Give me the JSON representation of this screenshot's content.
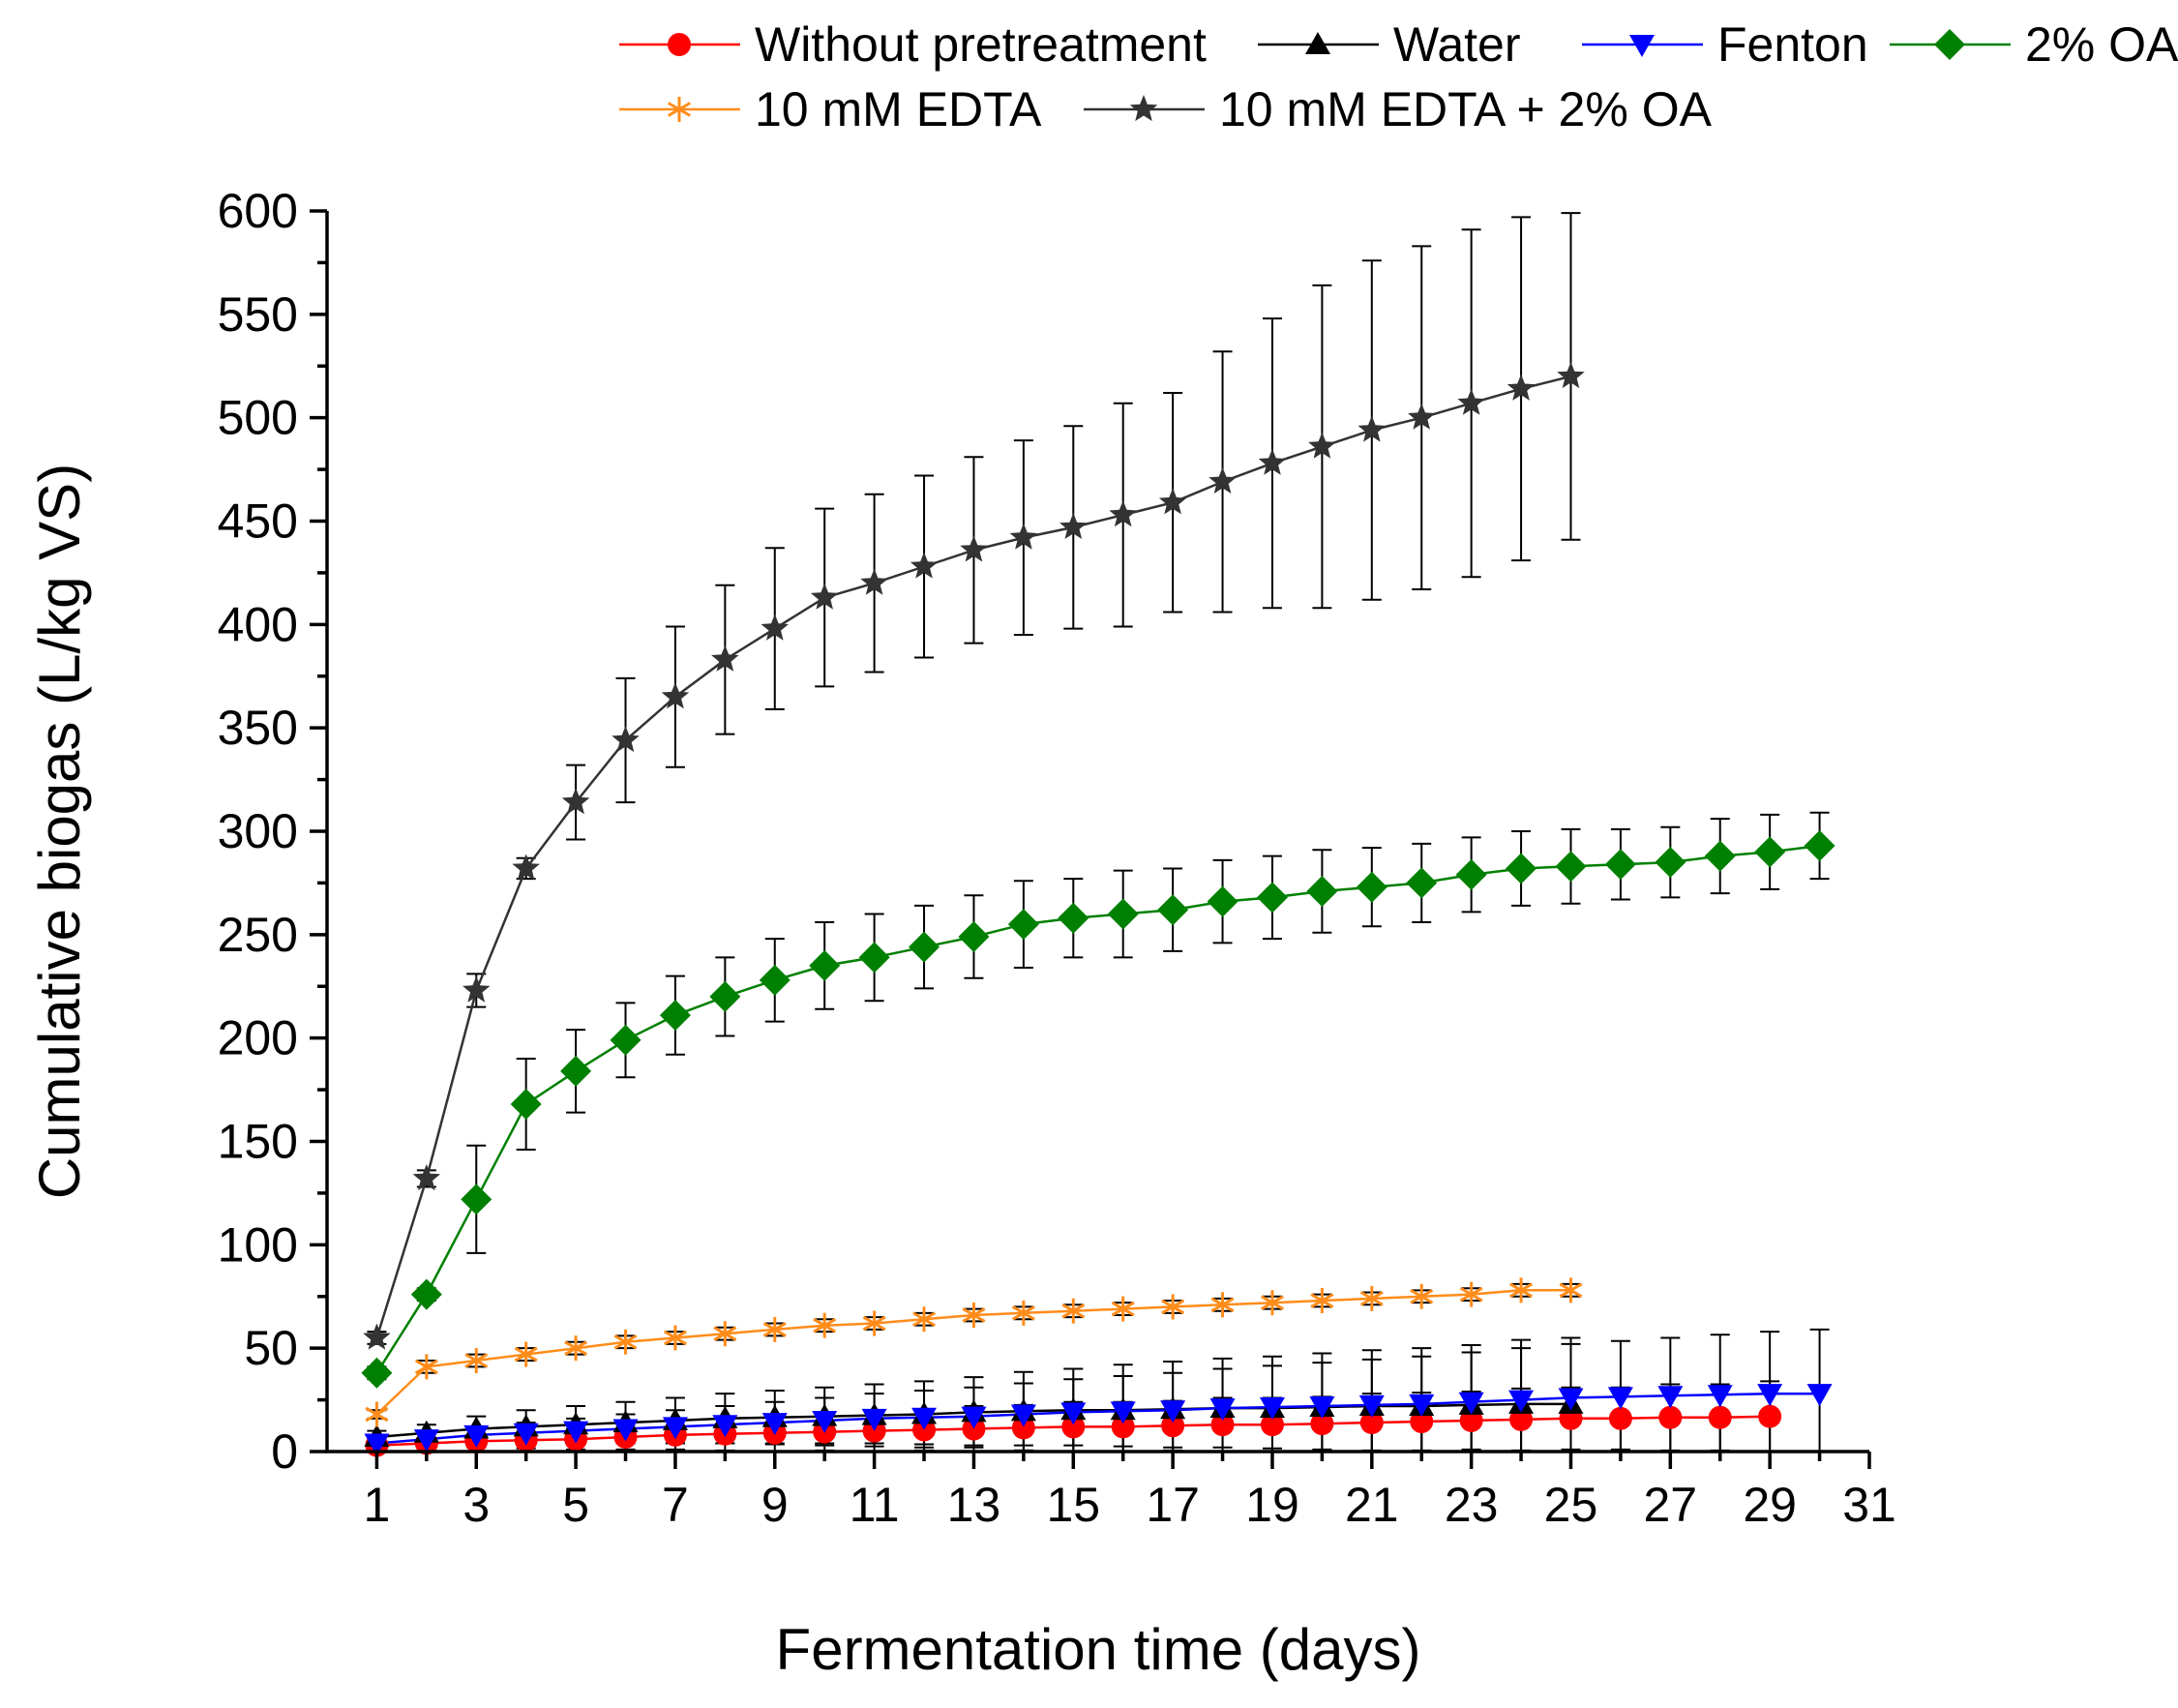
{
  "chart_data": {
    "type": "line",
    "title": "",
    "xlabel": "Fermentation time (days)",
    "ylabel": "Cumulative biogas (L/kg VS)",
    "xlim": [
      0,
      31
    ],
    "ylim": [
      0,
      600
    ],
    "xticks": [
      1,
      3,
      5,
      7,
      9,
      11,
      13,
      15,
      17,
      19,
      21,
      23,
      25,
      27,
      29,
      31
    ],
    "yticks": [
      0,
      50,
      100,
      150,
      200,
      250,
      300,
      350,
      400,
      450,
      500,
      550,
      600
    ],
    "legend_position": "top",
    "series": [
      {
        "name": "Without pretreatment",
        "color": "#ff0000",
        "marker": "circle",
        "x": [
          1,
          2,
          3,
          4,
          5,
          6,
          7,
          8,
          9,
          10,
          11,
          12,
          13,
          14,
          15,
          16,
          17,
          18,
          19,
          20,
          21,
          22,
          23,
          24,
          25,
          26,
          27,
          28,
          29
        ],
        "y": [
          3,
          4,
          5,
          5.5,
          6,
          7,
          8,
          8.5,
          9,
          9.5,
          10,
          10.5,
          11,
          11.5,
          12,
          12,
          12.5,
          13,
          13,
          13.5,
          14,
          14.5,
          15,
          15.5,
          16,
          16,
          16.5,
          16.5,
          17
        ],
        "err": [
          1,
          2,
          3,
          4,
          5,
          6,
          7,
          8,
          9,
          9,
          10,
          10,
          11,
          11,
          12,
          12,
          12,
          13,
          13,
          13,
          14,
          14,
          14,
          15,
          15,
          15,
          16,
          16,
          17
        ]
      },
      {
        "name": "Water",
        "color": "#000000",
        "marker": "triangle-up",
        "x": [
          1,
          2,
          3,
          4,
          5,
          6,
          7,
          8,
          9,
          10,
          11,
          12,
          13,
          14,
          15,
          16,
          17,
          18,
          19,
          20,
          21,
          22,
          23,
          24,
          25
        ],
        "y": [
          7,
          9,
          11,
          12,
          13,
          14,
          15,
          16,
          16.5,
          17,
          17.5,
          18,
          19,
          19.5,
          20,
          20,
          20.5,
          21,
          21,
          21.5,
          22,
          22,
          22.5,
          23,
          23
        ],
        "err": [
          3,
          4,
          6,
          8,
          9,
          10,
          11,
          12,
          13,
          14,
          15,
          16,
          17,
          19,
          20,
          22,
          23,
          24,
          25,
          26,
          27,
          28,
          29,
          31,
          32
        ]
      },
      {
        "name": "Fenton",
        "color": "#0000ff",
        "marker": "triangle-down",
        "x": [
          1,
          2,
          3,
          4,
          5,
          6,
          7,
          8,
          9,
          10,
          11,
          12,
          13,
          14,
          15,
          16,
          17,
          18,
          19,
          20,
          21,
          22,
          23,
          24,
          25,
          26,
          27,
          28,
          29,
          30
        ],
        "y": [
          4,
          6,
          8,
          9,
          10,
          11,
          12,
          13,
          14,
          15,
          16,
          16.5,
          17,
          18,
          19,
          19.5,
          20,
          21,
          21.5,
          22,
          22.5,
          23,
          24,
          25,
          26,
          26.5,
          27,
          27.5,
          28,
          28
        ],
        "err": [
          2,
          3,
          4,
          5,
          6,
          7,
          8,
          9,
          10,
          11,
          12,
          13,
          14,
          15,
          16,
          17,
          18,
          19,
          20,
          21,
          22,
          23,
          24,
          25,
          26,
          27,
          28,
          29,
          30,
          31
        ]
      },
      {
        "name": "2% OA",
        "color": "#008000",
        "marker": "diamond",
        "x": [
          1,
          2,
          3,
          4,
          5,
          6,
          7,
          8,
          9,
          10,
          11,
          12,
          13,
          14,
          15,
          16,
          17,
          18,
          19,
          20,
          21,
          22,
          23,
          24,
          25,
          26,
          27,
          28,
          29,
          30
        ],
        "y": [
          38,
          76,
          122,
          168,
          184,
          199,
          211,
          220,
          228,
          235,
          239,
          244,
          249,
          255,
          258,
          260,
          262,
          266,
          268,
          271,
          273,
          275,
          279,
          282,
          283,
          284,
          285,
          288,
          290,
          293
        ],
        "err": [
          3,
          3,
          26,
          22,
          20,
          18,
          19,
          19,
          20,
          21,
          21,
          20,
          20,
          21,
          19,
          21,
          20,
          20,
          20,
          20,
          19,
          19,
          18,
          18,
          18,
          17,
          17,
          18,
          18,
          16
        ]
      },
      {
        "name": "10 mM EDTA",
        "color": "#ff8c1a",
        "marker": "asterisk",
        "x": [
          1,
          2,
          3,
          4,
          5,
          6,
          7,
          8,
          9,
          10,
          11,
          12,
          13,
          14,
          15,
          16,
          17,
          18,
          19,
          20,
          21,
          22,
          23,
          24,
          25
        ],
        "y": [
          18,
          41,
          44,
          47,
          50,
          53,
          55,
          57,
          59,
          61,
          62,
          64,
          66,
          67,
          68,
          69,
          70,
          71,
          72,
          73,
          74,
          75,
          76,
          78,
          78
        ],
        "err": [
          2,
          3,
          3,
          3,
          3,
          3,
          3,
          3,
          3,
          3,
          3,
          3,
          3,
          3,
          3,
          3,
          3,
          3,
          3,
          3,
          3,
          3,
          3,
          3,
          3
        ]
      },
      {
        "name": "10 mM EDTA + 2% OA",
        "color": "#333333",
        "marker": "star",
        "x": [
          1,
          2,
          3,
          4,
          5,
          6,
          7,
          8,
          9,
          10,
          11,
          12,
          13,
          14,
          15,
          16,
          17,
          18,
          19,
          20,
          21,
          22,
          23,
          24,
          25
        ],
        "y": [
          55,
          132,
          223,
          282,
          314,
          344,
          365,
          383,
          398,
          413,
          420,
          428,
          436,
          442,
          447,
          453,
          459,
          469,
          478,
          486,
          494,
          500,
          507,
          514,
          520
        ],
        "err": [
          3,
          4,
          8,
          5,
          18,
          30,
          34,
          36,
          39,
          43,
          43,
          44,
          45,
          47,
          49,
          54,
          53,
          63,
          70,
          78,
          82,
          83,
          84,
          83,
          79
        ]
      }
    ]
  }
}
